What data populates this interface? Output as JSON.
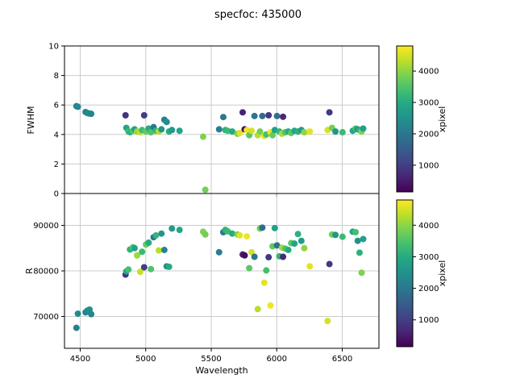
{
  "figure": {
    "title": "specfoc: 435000",
    "background": "#ffffff"
  },
  "chart_data": {
    "type": "scatter",
    "title": "specfoc: 435000",
    "xlabel": "Wavelength",
    "xlim": [
      4380,
      6780
    ],
    "xticks": [
      4500,
      5000,
      5500,
      6000,
      6500
    ],
    "grid": true,
    "grid_color": "#cccccc",
    "marker_radius": 4,
    "colorbar": {
      "label": "xpixel",
      "ticks": [
        1000,
        2000,
        3000,
        4000
      ],
      "vmin": 150,
      "vmax": 4800,
      "colormap": "viridis"
    },
    "x": [
      4471,
      4482,
      4541,
      4556,
      4571,
      4584,
      4846,
      4852,
      4868,
      4880,
      4902,
      4915,
      4934,
      4958,
      4972,
      4988,
      5002,
      5022,
      5040,
      5060,
      5078,
      5100,
      5120,
      5142,
      5160,
      5178,
      5200,
      5258,
      5438,
      5455,
      5560,
      5592,
      5608,
      5625,
      5660,
      5700,
      5718,
      5740,
      5755,
      5772,
      5790,
      5808,
      5830,
      5855,
      5872,
      5890,
      5905,
      5920,
      5938,
      5952,
      5968,
      5985,
      6002,
      6020,
      6040,
      6048,
      6065,
      6088,
      6110,
      6135,
      6162,
      6188,
      6210,
      6252,
      6388,
      6402,
      6422,
      6448,
      6502,
      6580,
      6602,
      6618,
      6632,
      6648,
      6660
    ],
    "color_values": [
      2200,
      2350,
      2150,
      2300,
      2450,
      2250,
      800,
      2900,
      3400,
      3100,
      3600,
      2800,
      4100,
      4400,
      3300,
      1000,
      3700,
      3000,
      3500,
      2000,
      3200,
      4300,
      2600,
      2200,
      2400,
      3000,
      2700,
      2900,
      3900,
      3800,
      2100,
      2000,
      3100,
      3300,
      3000,
      3900,
      4600,
      600,
      300,
      4700,
      3600,
      4500,
      2000,
      4300,
      3800,
      1800,
      4600,
      3400,
      900,
      4700,
      3700,
      2800,
      1900,
      3200,
      4200,
      700,
      3500,
      3000,
      3600,
      2900,
      3100,
      2700,
      4000,
      4600,
      4500,
      900,
      3800,
      2600,
      3300,
      2900,
      3400,
      2500,
      3100,
      3900,
      2800
    ],
    "series": [
      {
        "name": "FWHM",
        "ylim": [
          0,
          10
        ],
        "yticks": [
          0,
          2,
          4,
          6,
          8,
          10
        ],
        "values": [
          5.92,
          5.88,
          5.52,
          5.45,
          5.42,
          5.4,
          5.3,
          4.45,
          4.2,
          4.15,
          4.25,
          4.35,
          4.2,
          4.15,
          4.3,
          5.3,
          4.2,
          4.4,
          4.15,
          4.5,
          4.25,
          4.2,
          4.35,
          5.0,
          4.85,
          4.2,
          4.3,
          4.25,
          3.85,
          0.25,
          4.35,
          5.18,
          4.3,
          4.25,
          4.2,
          4.05,
          4.1,
          5.5,
          4.35,
          4.3,
          3.95,
          4.25,
          5.25,
          3.95,
          4.2,
          5.25,
          3.9,
          4.0,
          5.3,
          4.15,
          3.95,
          4.3,
          5.25,
          4.2,
          4.05,
          5.2,
          4.15,
          4.2,
          4.1,
          4.25,
          4.2,
          4.3,
          4.15,
          4.2,
          4.3,
          5.5,
          4.45,
          4.2,
          4.15,
          4.25,
          4.4,
          4.35,
          4.3,
          4.2,
          4.4
        ]
      },
      {
        "name": "R",
        "ylim": [
          63000,
          97000
        ],
        "yticks": [
          70000,
          80000,
          90000
        ],
        "values": [
          67500,
          70600,
          70900,
          71300,
          71500,
          70500,
          79200,
          79900,
          80300,
          84700,
          85200,
          85000,
          83400,
          79800,
          84200,
          80800,
          85800,
          86200,
          80400,
          87400,
          87800,
          84500,
          88200,
          84600,
          81000,
          80900,
          89300,
          89000,
          88600,
          88000,
          84100,
          88500,
          89000,
          88700,
          88200,
          88000,
          87800,
          83600,
          83400,
          87600,
          80600,
          84100,
          83100,
          71600,
          89300,
          89500,
          77400,
          80100,
          83000,
          72400,
          85400,
          89400,
          85600,
          83200,
          85100,
          83100,
          84900,
          84600,
          86100,
          86000,
          88100,
          86600,
          85000,
          81000,
          69000,
          81500,
          88000,
          87900,
          87500,
          88600,
          88500,
          86600,
          84000,
          79600,
          87000
        ]
      }
    ]
  }
}
